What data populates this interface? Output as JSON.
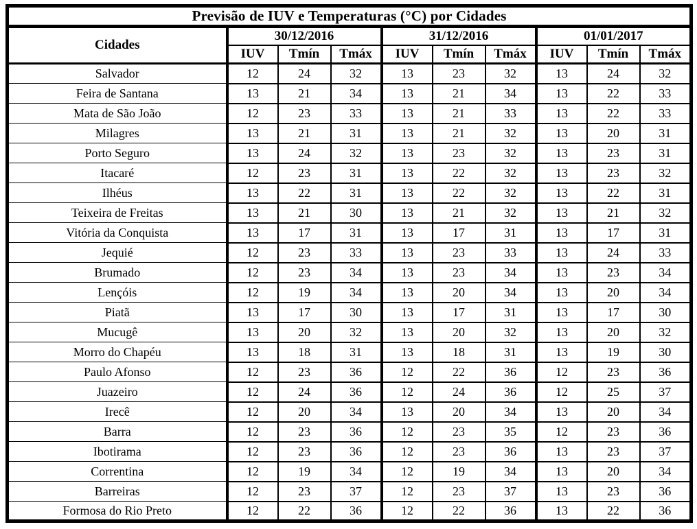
{
  "title": "Previsão de IUV e Temperaturas (°C) por Cidades",
  "columns": {
    "city_header": "Cidades",
    "dates": [
      "30/12/2016",
      "31/12/2016",
      "01/01/2017"
    ],
    "metrics": [
      "IUV",
      "Tmín",
      "Tmáx"
    ]
  },
  "rows": [
    {
      "city": "Salvador",
      "values": [
        [
          12,
          24,
          32
        ],
        [
          13,
          23,
          32
        ],
        [
          13,
          24,
          32
        ]
      ]
    },
    {
      "city": "Feira de Santana",
      "values": [
        [
          13,
          21,
          34
        ],
        [
          13,
          21,
          34
        ],
        [
          13,
          22,
          33
        ]
      ]
    },
    {
      "city": "Mata de São João",
      "values": [
        [
          12,
          23,
          33
        ],
        [
          13,
          21,
          33
        ],
        [
          13,
          22,
          33
        ]
      ]
    },
    {
      "city": "Milagres",
      "values": [
        [
          13,
          21,
          31
        ],
        [
          13,
          21,
          32
        ],
        [
          13,
          20,
          31
        ]
      ]
    },
    {
      "city": "Porto Seguro",
      "values": [
        [
          13,
          24,
          32
        ],
        [
          13,
          23,
          32
        ],
        [
          13,
          23,
          31
        ]
      ]
    },
    {
      "city": "Itacaré",
      "values": [
        [
          12,
          23,
          31
        ],
        [
          13,
          22,
          32
        ],
        [
          13,
          23,
          32
        ]
      ]
    },
    {
      "city": "Ilhéus",
      "values": [
        [
          13,
          22,
          31
        ],
        [
          13,
          22,
          32
        ],
        [
          13,
          22,
          31
        ]
      ]
    },
    {
      "city": "Teixeira de Freitas",
      "values": [
        [
          13,
          21,
          30
        ],
        [
          13,
          21,
          32
        ],
        [
          13,
          21,
          32
        ]
      ]
    },
    {
      "city": "Vitória da Conquista",
      "values": [
        [
          13,
          17,
          31
        ],
        [
          13,
          17,
          31
        ],
        [
          13,
          17,
          31
        ]
      ]
    },
    {
      "city": "Jequié",
      "values": [
        [
          12,
          23,
          33
        ],
        [
          13,
          23,
          33
        ],
        [
          13,
          24,
          33
        ]
      ]
    },
    {
      "city": "Brumado",
      "values": [
        [
          12,
          23,
          34
        ],
        [
          13,
          23,
          34
        ],
        [
          13,
          23,
          34
        ]
      ]
    },
    {
      "city": "Lençóis",
      "values": [
        [
          12,
          19,
          34
        ],
        [
          13,
          20,
          34
        ],
        [
          13,
          20,
          34
        ]
      ]
    },
    {
      "city": "Piatã",
      "values": [
        [
          13,
          17,
          30
        ],
        [
          13,
          17,
          31
        ],
        [
          13,
          17,
          30
        ]
      ]
    },
    {
      "city": "Mucugê",
      "values": [
        [
          13,
          20,
          32
        ],
        [
          13,
          20,
          32
        ],
        [
          13,
          20,
          32
        ]
      ]
    },
    {
      "city": "Morro do Chapéu",
      "values": [
        [
          13,
          18,
          31
        ],
        [
          13,
          18,
          31
        ],
        [
          13,
          19,
          30
        ]
      ]
    },
    {
      "city": "Paulo Afonso",
      "values": [
        [
          12,
          23,
          36
        ],
        [
          12,
          22,
          36
        ],
        [
          12,
          23,
          36
        ]
      ]
    },
    {
      "city": "Juazeiro",
      "values": [
        [
          12,
          24,
          36
        ],
        [
          12,
          24,
          36
        ],
        [
          12,
          25,
          37
        ]
      ]
    },
    {
      "city": "Irecê",
      "values": [
        [
          12,
          20,
          34
        ],
        [
          13,
          20,
          34
        ],
        [
          13,
          20,
          34
        ]
      ]
    },
    {
      "city": "Barra",
      "values": [
        [
          12,
          23,
          36
        ],
        [
          12,
          23,
          35
        ],
        [
          12,
          23,
          36
        ]
      ]
    },
    {
      "city": "Ibotirama",
      "values": [
        [
          12,
          23,
          36
        ],
        [
          12,
          23,
          36
        ],
        [
          13,
          23,
          37
        ]
      ]
    },
    {
      "city": "Correntina",
      "values": [
        [
          12,
          19,
          34
        ],
        [
          12,
          19,
          34
        ],
        [
          13,
          20,
          34
        ]
      ]
    },
    {
      "city": "Barreiras",
      "values": [
        [
          12,
          23,
          37
        ],
        [
          12,
          23,
          37
        ],
        [
          13,
          23,
          36
        ]
      ]
    },
    {
      "city": "Formosa do Rio Preto",
      "values": [
        [
          12,
          22,
          36
        ],
        [
          12,
          22,
          36
        ],
        [
          13,
          22,
          36
        ]
      ]
    }
  ],
  "colors": {
    "border": "#000000",
    "text": "#000000",
    "background": "#ffffff"
  }
}
